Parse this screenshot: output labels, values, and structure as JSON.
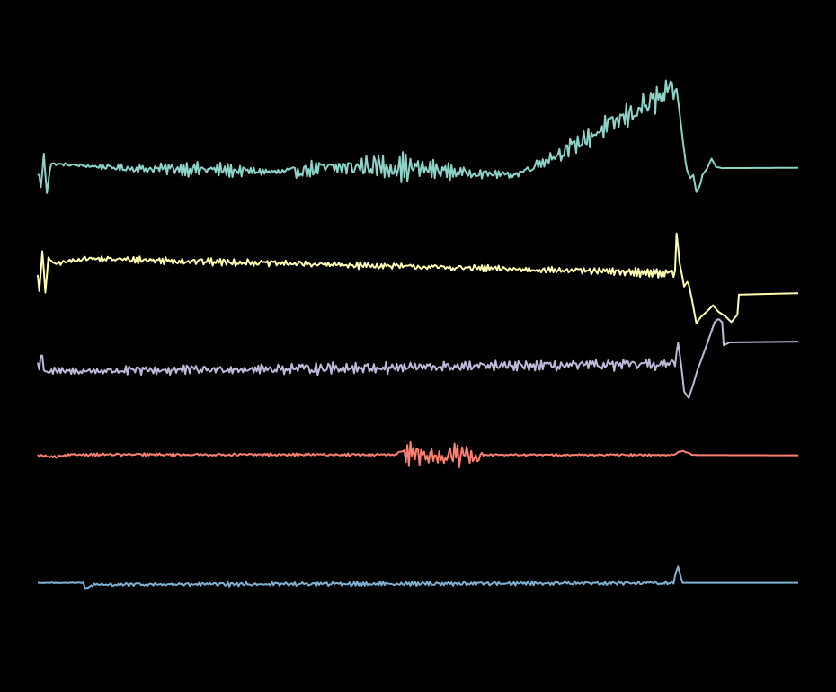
{
  "background": "#000000",
  "chart_data": {
    "type": "line",
    "title": "",
    "xlabel": "",
    "ylabel": "",
    "axes_visible": false,
    "grid": false,
    "legend": "none",
    "x": {
      "start": 0,
      "end": 1000,
      "step": 2
    },
    "series": [
      {
        "color": "#8dd3c7",
        "offset": 0.75,
        "baseline": [
          [
            0,
            0.2
          ],
          [
            45,
            0.21
          ],
          [
            100,
            0.23
          ],
          [
            180,
            0.28
          ],
          [
            240,
            0.25
          ],
          [
            320,
            0.2
          ],
          [
            380,
            0.32
          ],
          [
            440,
            0.4
          ],
          [
            500,
            0.35
          ],
          [
            560,
            0.24
          ],
          [
            620,
            0.2
          ],
          [
            700,
            0.28
          ],
          [
            760,
            0.45
          ],
          [
            838,
            0.6
          ],
          [
            860,
            0.55
          ],
          [
            900,
            0.38
          ],
          [
            1000,
            0.39
          ]
        ],
        "noise": [
          [
            0,
            0.05
          ],
          [
            60,
            0.06
          ],
          [
            220,
            0.3
          ],
          [
            300,
            0.12
          ],
          [
            380,
            0.4
          ],
          [
            480,
            0.5
          ],
          [
            560,
            0.2
          ],
          [
            620,
            0.12
          ],
          [
            700,
            0.35
          ],
          [
            836,
            0.6
          ],
          [
            840,
            0.0
          ],
          [
            1000,
            0.0
          ]
        ],
        "spikes": [
          [
            3,
            -0.6
          ],
          [
            8,
            0.55
          ],
          [
            12,
            -0.5
          ],
          [
            17,
            0.3
          ],
          [
            140,
            0.1
          ],
          [
            630,
            0.0
          ],
          [
            840,
            1.95
          ],
          [
            843,
            1.5
          ],
          [
            848,
            0.6
          ],
          [
            853,
            -0.2
          ],
          [
            858,
            -0.45
          ],
          [
            862,
            -0.35
          ],
          [
            866,
            -0.8
          ],
          [
            871,
            -0.6
          ],
          [
            874,
            -0.3
          ],
          [
            880,
            -0.1
          ],
          [
            886,
            0.2
          ],
          [
            892,
            0.0
          ]
        ]
      },
      {
        "color": "#ffffb3",
        "offset": 0.5,
        "baseline": [
          [
            0,
            0.0
          ],
          [
            838,
            0.0
          ],
          [
            860,
            -0.4
          ],
          [
            880,
            -0.65
          ],
          [
            900,
            -0.6
          ],
          [
            1000,
            -0.55
          ]
        ],
        "noise": [
          [
            0,
            0.1
          ],
          [
            40,
            0.08
          ],
          [
            180,
            0.16
          ],
          [
            300,
            0.12
          ],
          [
            500,
            0.12
          ],
          [
            700,
            0.12
          ],
          [
            836,
            0.16
          ],
          [
            840,
            0.0
          ],
          [
            1000,
            0.0
          ]
        ],
        "spikes": [
          [
            2,
            -0.55
          ],
          [
            6,
            0.6
          ],
          [
            10,
            -0.55
          ],
          [
            14,
            0.45
          ],
          [
            20,
            0.25
          ],
          [
            62,
            0.4
          ],
          [
            838,
            0.0
          ],
          [
            840,
            1.15
          ],
          [
            844,
            0.4
          ],
          [
            850,
            -0.15
          ],
          [
            855,
            0.1
          ],
          [
            860,
            -0.3
          ],
          [
            866,
            -0.9
          ],
          [
            872,
            -0.65
          ],
          [
            880,
            -0.4
          ],
          [
            888,
            -0.25
          ],
          [
            895,
            -0.45
          ],
          [
            905,
            -0.6
          ],
          [
            912,
            -0.75
          ],
          [
            920,
            -0.55
          ]
        ]
      },
      {
        "color": "#bebada",
        "offset": 0.25,
        "baseline": [
          [
            0,
            0.05
          ],
          [
            838,
            0.0
          ],
          [
            850,
            -0.3
          ],
          [
            870,
            -0.05
          ],
          [
            890,
            0.4
          ],
          [
            910,
            0.6
          ],
          [
            1000,
            0.62
          ]
        ],
        "noise": [
          [
            0,
            0.2
          ],
          [
            40,
            0.12
          ],
          [
            180,
            0.22
          ],
          [
            260,
            0.14
          ],
          [
            320,
            0.22
          ],
          [
            440,
            0.22
          ],
          [
            560,
            0.2
          ],
          [
            700,
            0.2
          ],
          [
            836,
            0.25
          ],
          [
            840,
            0.0
          ],
          [
            1000,
            0.0
          ]
        ],
        "spikes": [
          [
            1,
            -0.35
          ],
          [
            5,
            0.3
          ],
          [
            9,
            -0.25
          ],
          [
            838,
            0.0
          ],
          [
            842,
            0.7
          ],
          [
            846,
            0.2
          ],
          [
            850,
            -0.45
          ],
          [
            856,
            -0.7
          ],
          [
            862,
            -0.4
          ],
          [
            868,
            -0.05
          ],
          [
            875,
            0.2
          ],
          [
            882,
            0.45
          ],
          [
            890,
            0.75
          ],
          [
            895,
            0.8
          ],
          [
            900,
            0.65
          ]
        ]
      },
      {
        "color": "#fb8072",
        "offset": 0.0,
        "baseline": [
          [
            0,
            0.0
          ],
          [
            20,
            -0.05
          ],
          [
            50,
            0.02
          ],
          [
            840,
            0.01
          ],
          [
            1000,
            0.0
          ]
        ],
        "noise": [
          [
            0,
            0.05
          ],
          [
            470,
            0.05
          ],
          [
            478,
            0.38
          ],
          [
            580,
            0.42
          ],
          [
            585,
            0.04
          ],
          [
            830,
            0.04
          ],
          [
            860,
            0.02
          ],
          [
            870,
            0.0
          ],
          [
            1000,
            0.0
          ]
        ],
        "spikes": [
          [
            840,
            0.05
          ],
          [
            848,
            0.12
          ],
          [
            855,
            0.05
          ],
          [
            862,
            0.0
          ]
        ]
      },
      {
        "color": "#80b1d3",
        "offset": -0.35,
        "baseline": [
          [
            0,
            0.0
          ],
          [
            60,
            0.0
          ],
          [
            64,
            -0.05
          ],
          [
            100,
            -0.03
          ],
          [
            838,
            0.0
          ],
          [
            1000,
            0.0
          ]
        ],
        "noise": [
          [
            0,
            0.01
          ],
          [
            60,
            0.02
          ],
          [
            70,
            0.07
          ],
          [
            300,
            0.08
          ],
          [
            500,
            0.08
          ],
          [
            700,
            0.08
          ],
          [
            836,
            0.08
          ],
          [
            840,
            0.0
          ],
          [
            1000,
            0.0
          ]
        ],
        "spikes": [
          [
            60,
            0.0
          ],
          [
            62,
            -0.12
          ],
          [
            66,
            -0.08
          ],
          [
            70,
            -0.02
          ],
          [
            836,
            0.0
          ],
          [
            839,
            0.28
          ],
          [
            842,
            0.45
          ],
          [
            845,
            0.2
          ],
          [
            848,
            0.0
          ]
        ]
      }
    ],
    "y_range": [
      -0.6,
      1.2
    ]
  }
}
